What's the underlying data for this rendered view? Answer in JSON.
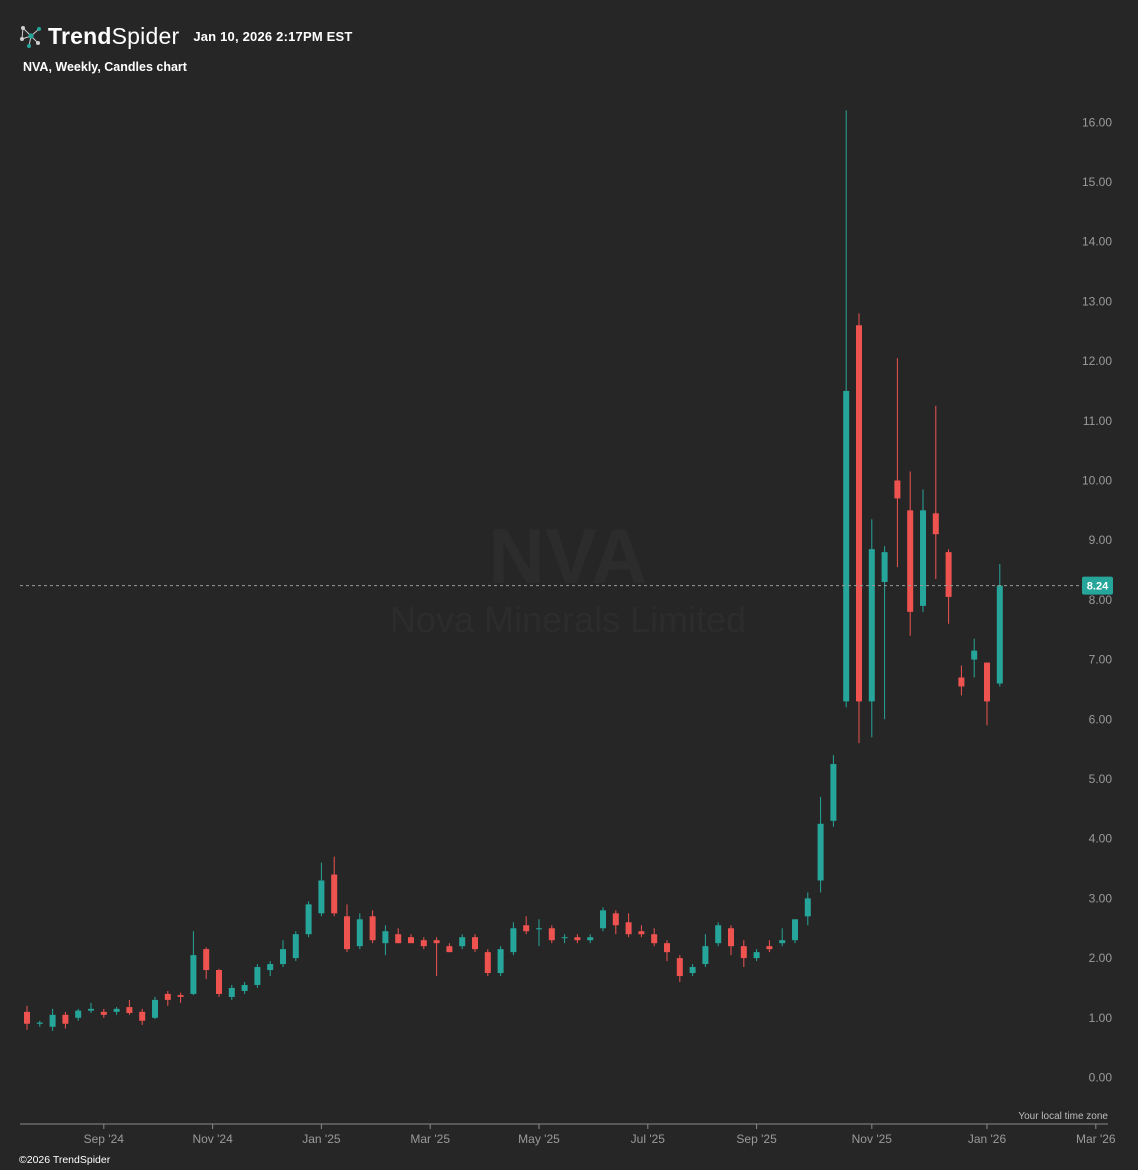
{
  "header": {
    "brand_bold": "Trend",
    "brand_light": "Spider",
    "timestamp": "Jan 10, 2026 2:17PM EST"
  },
  "chart_label": "NVA, Weekly, Candles chart",
  "watermark": {
    "symbol": "NVA",
    "name": "Nova Minerals Limited"
  },
  "footer": {
    "copyright": "©2026 TrendSpider",
    "timezone_note": "Your local time zone"
  },
  "colors": {
    "background": "#262626",
    "up": "#26a69a",
    "down": "#ef5350",
    "price_tag": "#26a69a"
  },
  "chart_data": {
    "type": "candlestick",
    "symbol": "NVA",
    "interval": "Weekly",
    "last_price": "8.24",
    "ylim": [
      0,
      16.5
    ],
    "y_ticks": [
      "0.00",
      "1.00",
      "2.00",
      "3.00",
      "4.00",
      "5.00",
      "6.00",
      "7.00",
      "8.00",
      "9.00",
      "10.00",
      "11.00",
      "12.00",
      "13.00",
      "14.00",
      "15.00",
      "16.00"
    ],
    "x_ticks": [
      "Sep '24",
      "Nov '24",
      "Jan '25",
      "Mar '25",
      "May '25",
      "Jul '25",
      "Sep '25",
      "Nov '25",
      "Jan '26",
      "Mar '26"
    ],
    "x_tick_index": [
      6,
      14.5,
      23,
      31.5,
      40,
      48.5,
      57,
      66,
      75,
      83.5
    ],
    "candles": [
      {
        "o": 1.1,
        "h": 1.2,
        "l": 0.8,
        "c": 0.9
      },
      {
        "o": 0.9,
        "h": 0.95,
        "l": 0.85,
        "c": 0.92
      },
      {
        "o": 0.85,
        "h": 1.15,
        "l": 0.78,
        "c": 1.05
      },
      {
        "o": 1.05,
        "h": 1.1,
        "l": 0.82,
        "c": 0.9
      },
      {
        "o": 1.0,
        "h": 1.15,
        "l": 0.95,
        "c": 1.12
      },
      {
        "o": 1.12,
        "h": 1.25,
        "l": 1.08,
        "c": 1.15
      },
      {
        "o": 1.1,
        "h": 1.15,
        "l": 1.0,
        "c": 1.05
      },
      {
        "o": 1.1,
        "h": 1.18,
        "l": 1.05,
        "c": 1.15
      },
      {
        "o": 1.18,
        "h": 1.3,
        "l": 1.05,
        "c": 1.08
      },
      {
        "o": 1.1,
        "h": 1.15,
        "l": 0.88,
        "c": 0.95
      },
      {
        "o": 1.0,
        "h": 1.35,
        "l": 0.98,
        "c": 1.3
      },
      {
        "o": 1.4,
        "h": 1.45,
        "l": 1.2,
        "c": 1.3
      },
      {
        "o": 1.38,
        "h": 1.42,
        "l": 1.25,
        "c": 1.35
      },
      {
        "o": 1.4,
        "h": 2.45,
        "l": 1.38,
        "c": 2.05
      },
      {
        "o": 2.15,
        "h": 2.18,
        "l": 1.65,
        "c": 1.8
      },
      {
        "o": 1.8,
        "h": 1.82,
        "l": 1.35,
        "c": 1.4
      },
      {
        "o": 1.35,
        "h": 1.55,
        "l": 1.3,
        "c": 1.5
      },
      {
        "o": 1.45,
        "h": 1.6,
        "l": 1.4,
        "c": 1.55
      },
      {
        "o": 1.55,
        "h": 1.9,
        "l": 1.5,
        "c": 1.85
      },
      {
        "o": 1.8,
        "h": 1.95,
        "l": 1.7,
        "c": 1.9
      },
      {
        "o": 1.9,
        "h": 2.3,
        "l": 1.85,
        "c": 2.15
      },
      {
        "o": 2.0,
        "h": 2.45,
        "l": 1.95,
        "c": 2.4
      },
      {
        "o": 2.4,
        "h": 2.95,
        "l": 2.35,
        "c": 2.9
      },
      {
        "o": 2.75,
        "h": 3.6,
        "l": 2.7,
        "c": 3.3
      },
      {
        "o": 3.4,
        "h": 3.7,
        "l": 2.7,
        "c": 2.75
      },
      {
        "o": 2.7,
        "h": 2.9,
        "l": 2.1,
        "c": 2.15
      },
      {
        "o": 2.2,
        "h": 2.75,
        "l": 2.15,
        "c": 2.65
      },
      {
        "o": 2.7,
        "h": 2.8,
        "l": 2.25,
        "c": 2.3
      },
      {
        "o": 2.25,
        "h": 2.55,
        "l": 2.05,
        "c": 2.45
      },
      {
        "o": 2.4,
        "h": 2.5,
        "l": 2.25,
        "c": 2.25
      },
      {
        "o": 2.35,
        "h": 2.4,
        "l": 2.25,
        "c": 2.25
      },
      {
        "o": 2.3,
        "h": 2.35,
        "l": 2.15,
        "c": 2.2
      },
      {
        "o": 2.3,
        "h": 2.35,
        "l": 1.7,
        "c": 2.25
      },
      {
        "o": 2.2,
        "h": 2.25,
        "l": 2.1,
        "c": 2.1
      },
      {
        "o": 2.2,
        "h": 2.4,
        "l": 2.15,
        "c": 2.35
      },
      {
        "o": 2.35,
        "h": 2.4,
        "l": 2.1,
        "c": 2.15
      },
      {
        "o": 2.1,
        "h": 2.15,
        "l": 1.7,
        "c": 1.75
      },
      {
        "o": 1.75,
        "h": 2.2,
        "l": 1.7,
        "c": 2.15
      },
      {
        "o": 2.1,
        "h": 2.6,
        "l": 2.05,
        "c": 2.5
      },
      {
        "o": 2.55,
        "h": 2.7,
        "l": 2.4,
        "c": 2.45
      },
      {
        "o": 2.5,
        "h": 2.65,
        "l": 2.2,
        "c": 2.5
      },
      {
        "o": 2.5,
        "h": 2.55,
        "l": 2.25,
        "c": 2.3
      },
      {
        "o": 2.35,
        "h": 2.4,
        "l": 2.25,
        "c": 2.35
      },
      {
        "o": 2.35,
        "h": 2.4,
        "l": 2.25,
        "c": 2.3
      },
      {
        "o": 2.3,
        "h": 2.4,
        "l": 2.25,
        "c": 2.35
      },
      {
        "o": 2.5,
        "h": 2.85,
        "l": 2.45,
        "c": 2.8
      },
      {
        "o": 2.75,
        "h": 2.8,
        "l": 2.4,
        "c": 2.55
      },
      {
        "o": 2.6,
        "h": 2.75,
        "l": 2.35,
        "c": 2.4
      },
      {
        "o": 2.45,
        "h": 2.55,
        "l": 2.35,
        "c": 2.4
      },
      {
        "o": 2.4,
        "h": 2.5,
        "l": 2.2,
        "c": 2.25
      },
      {
        "o": 2.25,
        "h": 2.3,
        "l": 1.95,
        "c": 2.1
      },
      {
        "o": 2.0,
        "h": 2.05,
        "l": 1.6,
        "c": 1.7
      },
      {
        "o": 1.75,
        "h": 1.9,
        "l": 1.7,
        "c": 1.85
      },
      {
        "o": 1.9,
        "h": 2.4,
        "l": 1.85,
        "c": 2.2
      },
      {
        "o": 2.25,
        "h": 2.6,
        "l": 2.2,
        "c": 2.55
      },
      {
        "o": 2.5,
        "h": 2.55,
        "l": 2.05,
        "c": 2.2
      },
      {
        "o": 2.2,
        "h": 2.3,
        "l": 1.85,
        "c": 2.0
      },
      {
        "o": 2.0,
        "h": 2.15,
        "l": 1.95,
        "c": 2.1
      },
      {
        "o": 2.2,
        "h": 2.3,
        "l": 2.1,
        "c": 2.15
      },
      {
        "o": 2.25,
        "h": 2.5,
        "l": 2.2,
        "c": 2.3
      },
      {
        "o": 2.3,
        "h": 2.65,
        "l": 2.25,
        "c": 2.65
      },
      {
        "o": 2.7,
        "h": 3.1,
        "l": 2.55,
        "c": 3.0
      },
      {
        "o": 3.3,
        "h": 4.7,
        "l": 3.1,
        "c": 4.25
      },
      {
        "o": 4.3,
        "h": 5.4,
        "l": 4.2,
        "c": 5.25
      },
      {
        "o": 6.3,
        "h": 16.2,
        "l": 6.2,
        "c": 11.5
      },
      {
        "o": 12.6,
        "h": 12.8,
        "l": 5.6,
        "c": 6.3
      },
      {
        "o": 6.3,
        "h": 9.35,
        "l": 5.7,
        "c": 8.85
      },
      {
        "o": 8.3,
        "h": 8.9,
        "l": 6.0,
        "c": 8.8
      },
      {
        "o": 10.0,
        "h": 12.05,
        "l": 8.55,
        "c": 9.7
      },
      {
        "o": 9.5,
        "h": 10.15,
        "l": 7.4,
        "c": 7.8
      },
      {
        "o": 7.9,
        "h": 9.85,
        "l": 7.8,
        "c": 9.5
      },
      {
        "o": 9.45,
        "h": 11.25,
        "l": 8.35,
        "c": 9.1
      },
      {
        "o": 8.8,
        "h": 8.85,
        "l": 7.6,
        "c": 8.05
      },
      {
        "o": 6.7,
        "h": 6.9,
        "l": 6.4,
        "c": 6.55
      },
      {
        "o": 7.0,
        "h": 7.35,
        "l": 6.7,
        "c": 7.15
      },
      {
        "o": 6.95,
        "h": 6.95,
        "l": 5.9,
        "c": 6.3
      },
      {
        "o": 6.6,
        "h": 8.6,
        "l": 6.55,
        "c": 8.24
      }
    ]
  }
}
